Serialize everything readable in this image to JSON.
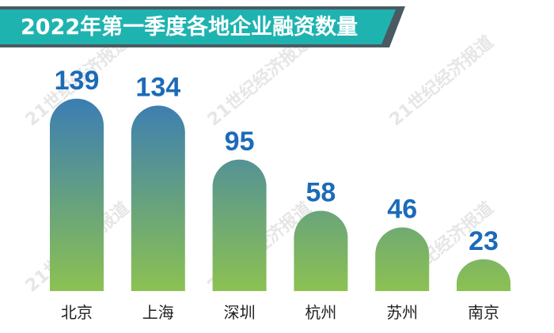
{
  "chart_data": {
    "type": "bar",
    "title": "2022年第一季度各地企业融资数量",
    "categories": [
      "北京",
      "上海",
      "深圳",
      "杭州",
      "苏州",
      "南京"
    ],
    "values": [
      139,
      134,
      95,
      58,
      46,
      23
    ],
    "gradient": [
      "#3b7db3",
      "#8cc152"
    ],
    "value_label_color": "#1c6bb8",
    "watermark": "21世纪经济报道"
  }
}
